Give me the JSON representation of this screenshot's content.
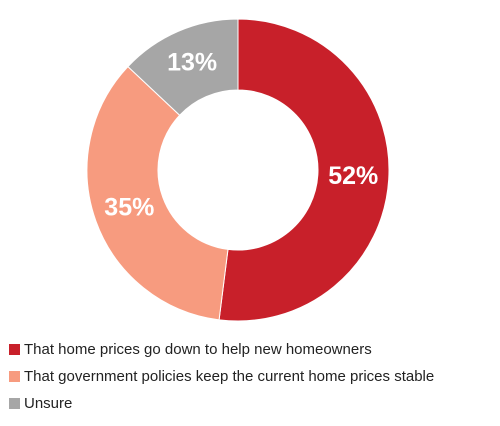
{
  "chart_data": {
    "type": "donut",
    "categories": [
      "That home prices go down to help new homeowners",
      "That government policies keep the current home prices stable",
      "Unsure"
    ],
    "values": [
      52,
      35,
      13
    ],
    "value_labels": [
      "52%",
      "35%",
      "13%"
    ],
    "colors": [
      "#c8202a",
      "#f79b7f",
      "#a6a6a6"
    ],
    "legend": "bottom-left"
  }
}
